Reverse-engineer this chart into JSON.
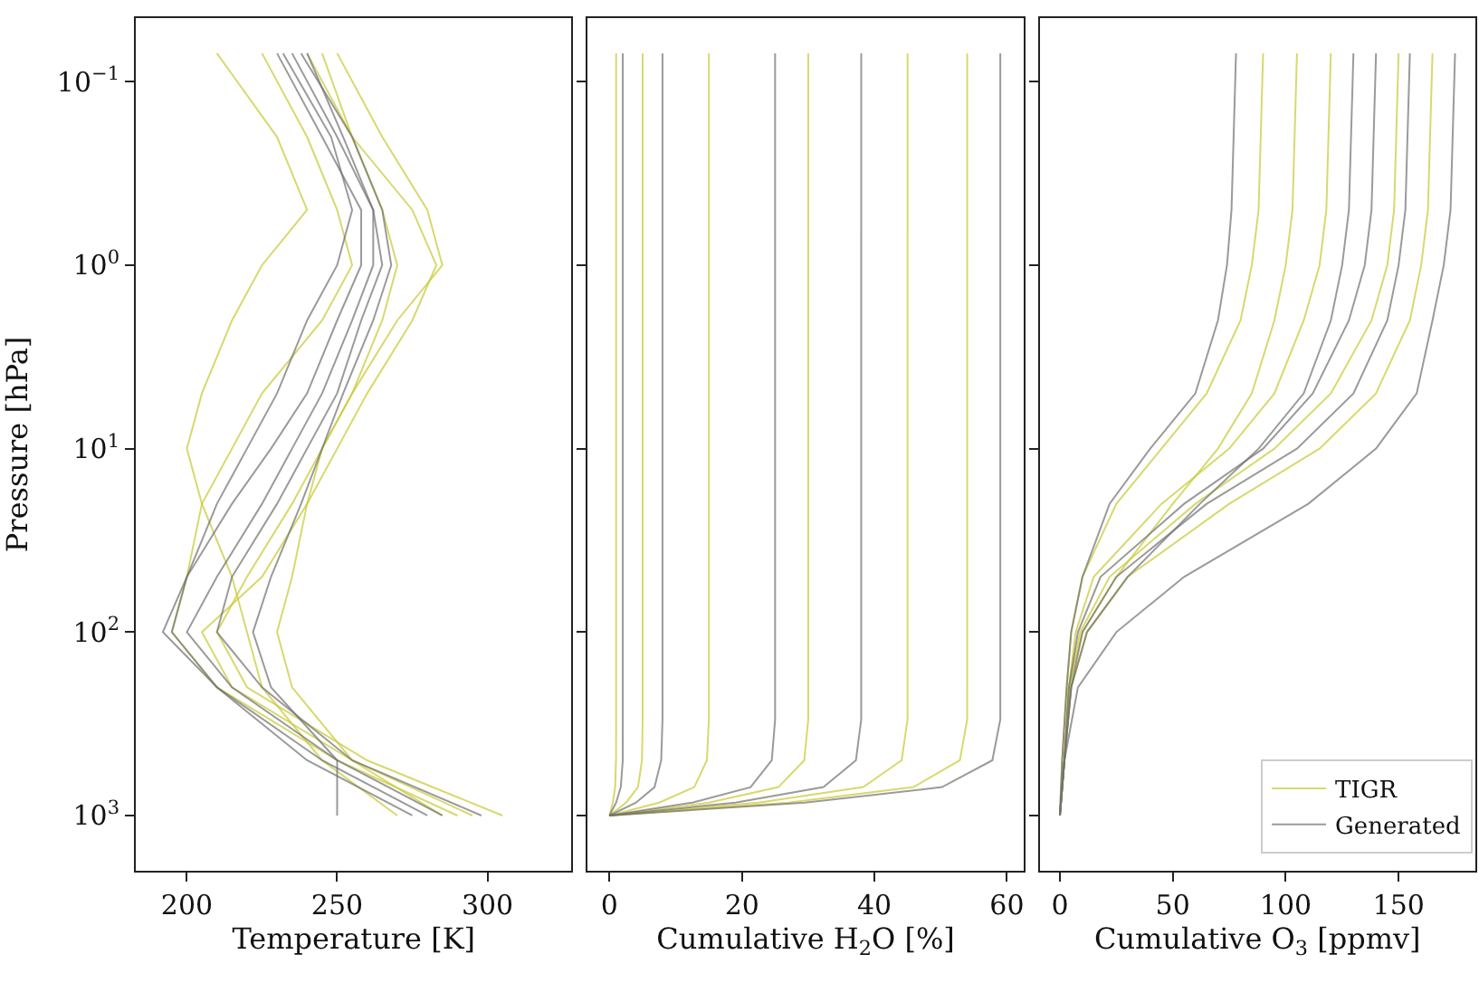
{
  "chart_data": [
    {
      "type": "line",
      "xlabel": "Temperature [K]",
      "ylabel": "Pressure [hPa]",
      "log": "y",
      "marker": "none",
      "line_style": "solid",
      "legend": false,
      "xlim": [
        183,
        328
      ],
      "xticks": [
        200,
        250,
        300
      ],
      "ylim": [
        2000,
        0.045
      ],
      "yticks": [
        {
          "value": 0.1,
          "label": "10$^{−1}$"
        },
        {
          "value": 1,
          "label": "10$^{0}$"
        },
        {
          "value": 10,
          "label": "10$^{1}$"
        },
        {
          "value": 100,
          "label": "10$^{2}$"
        },
        {
          "value": 1000,
          "label": "10$^{3}$"
        }
      ],
      "series": [
        {
          "color": "#c8c832",
          "x": [
            240,
            255,
            275,
            283,
            275,
            260,
            250,
            240,
            225,
            205,
            215,
            255,
            295
          ],
          "values": [
            0.07,
            0.2,
            0.5,
            1,
            2,
            5,
            10,
            20,
            50,
            100,
            200,
            500,
            1000
          ]
        },
        {
          "color": "#c8c832",
          "x": [
            225,
            240,
            250,
            255,
            245,
            225,
            215,
            205,
            200,
            195,
            210,
            250,
            290
          ],
          "values": [
            0.07,
            0.2,
            0.5,
            1,
            2,
            5,
            10,
            20,
            50,
            100,
            200,
            500,
            1000
          ]
        },
        {
          "color": "#c8c832",
          "x": [
            245,
            255,
            265,
            270,
            265,
            255,
            245,
            235,
            220,
            210,
            220,
            260,
            305
          ],
          "values": [
            0.07,
            0.2,
            0.5,
            1,
            2,
            5,
            10,
            20,
            50,
            100,
            200,
            500,
            1000
          ]
        },
        {
          "color": "#c8c832",
          "x": [
            210,
            230,
            240,
            225,
            215,
            205,
            200,
            205,
            215,
            220,
            225,
            245,
            270
          ],
          "values": [
            0.07,
            0.2,
            0.5,
            1,
            2,
            5,
            10,
            20,
            50,
            100,
            200,
            500,
            1000
          ]
        },
        {
          "color": "#c8c832",
          "x": [
            250,
            265,
            280,
            285,
            270,
            255,
            245,
            240,
            235,
            230,
            235,
            255,
            285
          ],
          "values": [
            0.07,
            0.2,
            0.5,
            1,
            2,
            5,
            10,
            20,
            50,
            100,
            200,
            500,
            1000
          ]
        },
        {
          "color": "#707070",
          "x": [
            235,
            250,
            262,
            262,
            255,
            245,
            235,
            225,
            210,
            200,
            215,
            250,
            285
          ],
          "values": [
            0.07,
            0.2,
            0.5,
            1,
            2,
            5,
            10,
            20,
            50,
            100,
            200,
            500,
            1000
          ]
        },
        {
          "color": "#707070",
          "x": [
            230,
            245,
            258,
            258,
            250,
            240,
            228,
            215,
            200,
            195,
            210,
            245,
            280
          ],
          "values": [
            0.07,
            0.2,
            0.5,
            1,
            2,
            5,
            10,
            20,
            50,
            100,
            200,
            500,
            1000
          ]
        },
        {
          "color": "#707070",
          "x": [
            240,
            252,
            262,
            265,
            258,
            250,
            240,
            230,
            215,
            210,
            225,
            255,
            298
          ],
          "values": [
            0.07,
            0.2,
            0.5,
            1,
            2,
            5,
            10,
            20,
            50,
            100,
            200,
            500,
            1000
          ]
        },
        {
          "color": "#707070",
          "x": [
            232,
            248,
            255,
            250,
            240,
            230,
            220,
            210,
            200,
            192,
            210,
            240,
            275
          ],
          "values": [
            0.07,
            0.2,
            0.5,
            1,
            2,
            5,
            10,
            20,
            50,
            100,
            200,
            500,
            1000
          ]
        },
        {
          "color": "#707070",
          "x": [
            238,
            255,
            265,
            268,
            262,
            252,
            245,
            238,
            228,
            222,
            228,
            250,
            250
          ],
          "values": [
            0.07,
            0.2,
            0.5,
            1,
            2,
            5,
            10,
            20,
            50,
            100,
            200,
            500,
            1000
          ]
        }
      ]
    },
    {
      "type": "line",
      "xlabel": "Cumulative H$_{2}$O [%]",
      "log": "y",
      "marker": "none",
      "line_style": "solid",
      "legend": false,
      "tick_labels": "x",
      "xlim": [
        -3.3,
        62.5
      ],
      "xticks": [
        0,
        20,
        40,
        60
      ],
      "ylim": [
        2000,
        0.045
      ],
      "series": [
        {
          "color": "#c8c832",
          "x": [
            1,
            1,
            1,
            0.98,
            0.85,
            0.5,
            0
          ],
          "values": [
            0.07,
            100,
            300,
            500,
            700,
            850,
            1000
          ]
        },
        {
          "color": "#c8c832",
          "x": [
            5,
            5,
            5,
            4.9,
            4.3,
            2.5,
            0
          ],
          "values": [
            0.07,
            100,
            300,
            500,
            700,
            850,
            1000
          ]
        },
        {
          "color": "#c8c832",
          "x": [
            15,
            15,
            15,
            14.7,
            12.8,
            7.5,
            0
          ],
          "values": [
            0.07,
            100,
            300,
            500,
            700,
            850,
            1000
          ]
        },
        {
          "color": "#c8c832",
          "x": [
            30,
            30,
            30,
            29.4,
            25.5,
            15,
            0
          ],
          "values": [
            0.07,
            100,
            300,
            500,
            700,
            850,
            1000
          ]
        },
        {
          "color": "#c8c832",
          "x": [
            45,
            45,
            45,
            44.1,
            38.3,
            22.5,
            0
          ],
          "values": [
            0.07,
            100,
            300,
            500,
            700,
            850,
            1000
          ]
        },
        {
          "color": "#c8c832",
          "x": [
            54,
            54,
            54,
            52.9,
            45.9,
            27,
            0
          ],
          "values": [
            0.07,
            100,
            300,
            500,
            700,
            850,
            1000
          ]
        },
        {
          "color": "#707070",
          "x": [
            2,
            2,
            2,
            2,
            1.7,
            1,
            0
          ],
          "values": [
            0.07,
            100,
            300,
            500,
            700,
            850,
            1000
          ]
        },
        {
          "color": "#707070",
          "x": [
            8,
            8,
            8,
            7.8,
            6.8,
            4,
            0
          ],
          "values": [
            0.07,
            100,
            300,
            500,
            700,
            850,
            1000
          ]
        },
        {
          "color": "#707070",
          "x": [
            25,
            25,
            25,
            24.5,
            21.3,
            12.5,
            0
          ],
          "values": [
            0.07,
            100,
            300,
            500,
            700,
            850,
            1000
          ]
        },
        {
          "color": "#707070",
          "x": [
            38,
            38,
            38,
            37.2,
            32.3,
            19,
            0
          ],
          "values": [
            0.07,
            100,
            300,
            500,
            700,
            850,
            1000
          ]
        },
        {
          "color": "#707070",
          "x": [
            59,
            59,
            59,
            57.8,
            50.2,
            29.5,
            0
          ],
          "values": [
            0.07,
            100,
            300,
            500,
            700,
            850,
            1000
          ]
        }
      ]
    },
    {
      "type": "line",
      "xlabel": "Cumulative O$_{3}$ [ppmv]",
      "log": "y",
      "marker": "none",
      "line_style": "solid",
      "legend": "bottom right",
      "tick_labels": "x",
      "xlim": [
        -9,
        184
      ],
      "xticks": [
        0,
        50,
        100,
        150
      ],
      "ylim": [
        2000,
        0.045
      ],
      "series": [
        {
          "name": "TIGR",
          "color": "#c8c832",
          "x": [
            90,
            88,
            85,
            80,
            65,
            45,
            25,
            10,
            5,
            3,
            1,
            0
          ],
          "values": [
            0.07,
            0.5,
            1,
            2,
            5,
            10,
            20,
            50,
            100,
            200,
            500,
            1000
          ]
        },
        {
          "color": "#c8c832",
          "x": [
            120,
            118,
            115,
            108,
            95,
            75,
            45,
            15,
            7,
            4,
            2,
            0
          ],
          "values": [
            0.07,
            0.5,
            1,
            2,
            5,
            10,
            20,
            50,
            100,
            200,
            500,
            1000
          ]
        },
        {
          "color": "#c8c832",
          "x": [
            150,
            148,
            145,
            138,
            120,
            95,
            60,
            22,
            9,
            4,
            2,
            0
          ],
          "values": [
            0.07,
            0.5,
            1,
            2,
            5,
            10,
            20,
            50,
            100,
            200,
            500,
            1000
          ]
        },
        {
          "color": "#c8c832",
          "x": [
            165,
            163,
            160,
            155,
            140,
            115,
            75,
            30,
            12,
            5,
            2,
            0
          ],
          "values": [
            0.07,
            0.5,
            1,
            2,
            5,
            10,
            20,
            50,
            100,
            200,
            500,
            1000
          ]
        },
        {
          "color": "#c8c832",
          "x": [
            105,
            103,
            100,
            95,
            85,
            70,
            50,
            25,
            10,
            4,
            2,
            0
          ],
          "values": [
            0.07,
            0.5,
            1,
            2,
            5,
            10,
            20,
            50,
            100,
            200,
            500,
            1000
          ]
        },
        {
          "name": "Generated",
          "color": "#707070",
          "x": [
            78,
            76,
            74,
            70,
            60,
            40,
            22,
            10,
            5,
            3,
            1,
            0
          ],
          "values": [
            0.07,
            0.5,
            1,
            2,
            5,
            10,
            20,
            50,
            100,
            200,
            500,
            1000
          ]
        },
        {
          "color": "#707070",
          "x": [
            140,
            138,
            135,
            128,
            112,
            90,
            55,
            18,
            8,
            4,
            2,
            0
          ],
          "values": [
            0.07,
            0.5,
            1,
            2,
            5,
            10,
            20,
            50,
            100,
            200,
            500,
            1000
          ]
        },
        {
          "color": "#707070",
          "x": [
            155,
            153,
            150,
            145,
            130,
            105,
            65,
            25,
            10,
            5,
            2,
            0
          ],
          "values": [
            0.07,
            0.5,
            1,
            2,
            5,
            10,
            20,
            50,
            100,
            200,
            500,
            1000
          ]
        },
        {
          "color": "#707070",
          "x": [
            175,
            173,
            170,
            165,
            158,
            140,
            110,
            55,
            25,
            8,
            2,
            0
          ],
          "values": [
            0.07,
            0.5,
            1,
            2,
            5,
            10,
            20,
            50,
            100,
            200,
            500,
            1000
          ]
        },
        {
          "color": "#707070",
          "x": [
            130,
            128,
            125,
            120,
            108,
            88,
            62,
            30,
            12,
            5,
            2,
            0
          ],
          "values": [
            0.07,
            0.5,
            1,
            2,
            5,
            10,
            20,
            50,
            100,
            200,
            500,
            1000
          ]
        }
      ]
    }
  ]
}
